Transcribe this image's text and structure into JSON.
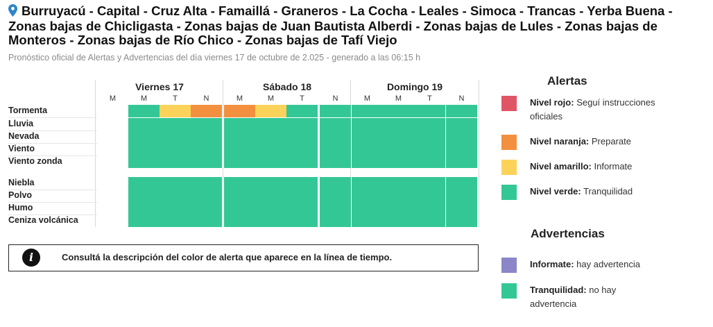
{
  "header": {
    "title": "Burruyacú - Capital - Cruz Alta - Famaillá - Graneros - La Cocha - Leales - Simoca - Trancas - Yerba Buena - Zonas bajas de Chicligasta - Zonas bajas de Juan Bautista Alberdi - Zonas bajas de Lules - Zonas bajas de Monteros - Zonas bajas de Río Chico - Zonas bajas de Tafí Viejo",
    "subtitle": "Pronóstico oficial de Alertas y Advertencias del día viernes 17 de octubre de 2.025 - generado a las 06:15 h"
  },
  "colors": {
    "rojo": "#e05565",
    "naranja": "#f2903f",
    "amarillo": "#fcd35a",
    "verde": "#34c796",
    "violeta": "#8a86c8"
  },
  "timeline": {
    "days": [
      {
        "label": "Viernes 17",
        "periods": [
          "M",
          "M",
          "T",
          "N"
        ]
      },
      {
        "label": "Sábado 18",
        "periods": [
          "M",
          "M",
          "T",
          "N"
        ]
      },
      {
        "label": "Domingo 19",
        "periods": [
          "M",
          "M",
          "T",
          "N"
        ]
      }
    ],
    "rows": [
      {
        "label": "Tormenta",
        "levels": [
          "none",
          "verde",
          "amarillo",
          "naranja",
          "naranja",
          "amarillo",
          "verde",
          "verde",
          "verde",
          "verde",
          "verde",
          "verde"
        ]
      },
      {
        "label": "Lluvia",
        "levels": [
          "none",
          "verde",
          "verde",
          "verde",
          "verde",
          "verde",
          "verde",
          "verde",
          "verde",
          "verde",
          "verde",
          "verde"
        ]
      },
      {
        "label": "Nevada",
        "levels": [
          "none",
          "verde",
          "verde",
          "verde",
          "verde",
          "verde",
          "verde",
          "verde",
          "verde",
          "verde",
          "verde",
          "verde"
        ]
      },
      {
        "label": "Viento",
        "levels": [
          "none",
          "verde",
          "verde",
          "verde",
          "verde",
          "verde",
          "verde",
          "verde",
          "verde",
          "verde",
          "verde",
          "verde"
        ]
      },
      {
        "label": "Viento zonda",
        "levels": [
          "none",
          "verde",
          "verde",
          "verde",
          "verde",
          "verde",
          "verde",
          "verde",
          "verde",
          "verde",
          "verde",
          "verde"
        ]
      },
      {
        "label": "Niebla",
        "levels": [
          "none",
          "verde",
          "verde",
          "verde",
          "verde",
          "verde",
          "verde",
          "verde",
          "verde",
          "verde",
          "verde",
          "verde"
        ]
      },
      {
        "label": "Polvo",
        "levels": [
          "none",
          "verde",
          "verde",
          "verde",
          "verde",
          "verde",
          "verde",
          "verde",
          "verde",
          "verde",
          "verde",
          "verde"
        ]
      },
      {
        "label": "Humo",
        "levels": [
          "none",
          "verde",
          "verde",
          "verde",
          "verde",
          "verde",
          "verde",
          "verde",
          "verde",
          "verde",
          "verde",
          "verde"
        ]
      },
      {
        "label": "Ceniza volcánica",
        "levels": [
          "none",
          "verde",
          "verde",
          "verde",
          "verde",
          "verde",
          "verde",
          "verde",
          "verde",
          "verde",
          "verde",
          "verde"
        ]
      }
    ]
  },
  "info_box": {
    "icon": "info-icon",
    "text": "Consultá la descripción del color de alerta que aparece en la línea de tiempo."
  },
  "legend": {
    "alertas_title": "Alertas",
    "alertas": [
      {
        "level": "rojo",
        "name": "Nivel rojo:",
        "desc": "Seguí instrucciones oficiales"
      },
      {
        "level": "naranja",
        "name": "Nivel naranja:",
        "desc": "Preparate"
      },
      {
        "level": "amarillo",
        "name": "Nivel amarillo:",
        "desc": "Informate"
      },
      {
        "level": "verde",
        "name": "Nivel verde:",
        "desc": "Tranquilidad"
      }
    ],
    "advertencias_title": "Advertencias",
    "advertencias": [
      {
        "level": "violeta",
        "name": "Informate:",
        "desc": "hay advertencia"
      },
      {
        "level": "verde",
        "name": "Tranquilidad:",
        "desc": "no hay advertencia"
      }
    ]
  }
}
